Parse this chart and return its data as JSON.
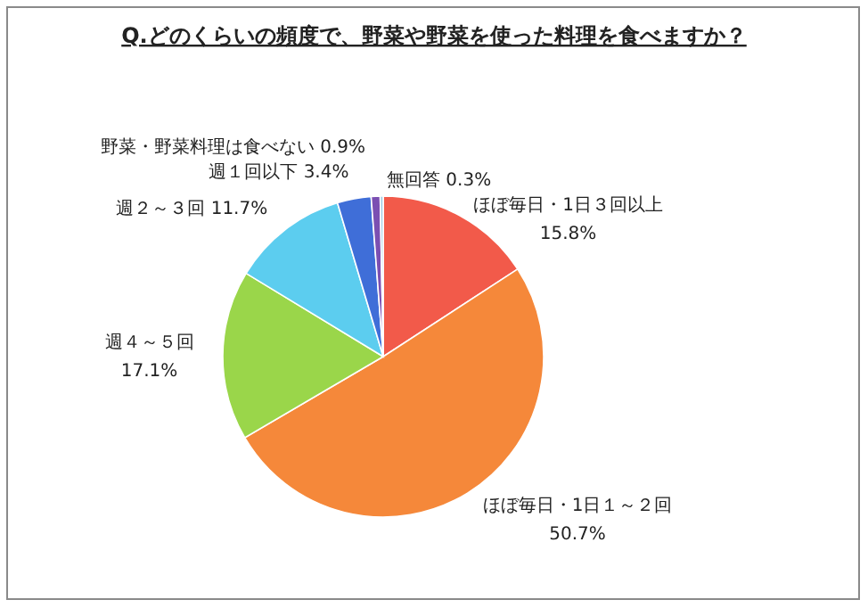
{
  "chart_data": {
    "type": "pie",
    "title": "Q.どのくらいの頻度で、野菜や野菜を使った料理を食べますか？",
    "categories": [
      "ほぼ毎日・1日３回以上",
      "ほぼ毎日・1日１～２回",
      "週４～５回",
      "週２～３回",
      "週１回以下",
      "野菜・野菜料理は食べない",
      "無回答"
    ],
    "values": [
      15.8,
      50.7,
      17.1,
      11.7,
      3.4,
      0.9,
      0.3
    ],
    "value_labels": [
      "15.8%",
      "50.7%",
      "17.1%",
      "11.7%",
      "3.4%",
      "0.9%",
      "0.3%"
    ],
    "colors": [
      "#f25a4a",
      "#f5883a",
      "#9ad64a",
      "#5ccdef",
      "#3f6ed8",
      "#7b4fb2",
      "#9fcde6"
    ]
  }
}
